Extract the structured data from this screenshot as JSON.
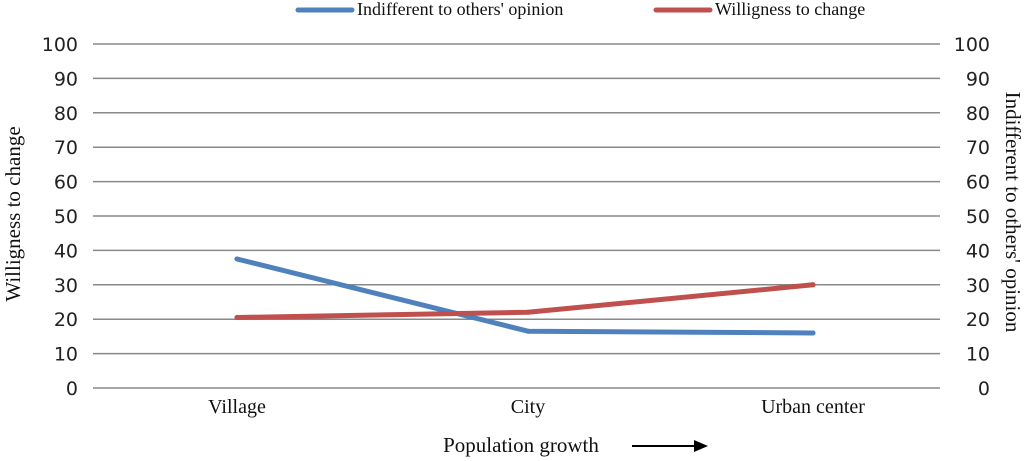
{
  "chart_data": {
    "type": "line",
    "categories": [
      "Village",
      "City",
      "Urban center"
    ],
    "series": [
      {
        "name": "Indifferent to  others' opinion",
        "values": [
          37.5,
          16.5,
          16
        ],
        "color": "#4f81bd",
        "axis": "right"
      },
      {
        "name": "Willigness to change",
        "values": [
          20.5,
          22,
          30
        ],
        "color": "#c0504d",
        "axis": "left"
      }
    ],
    "y_ticks": [
      "0",
      "10",
      "20",
      "30",
      "40",
      "50",
      "60",
      "70",
      "80",
      "90",
      "100"
    ],
    "ylim": [
      0,
      100
    ],
    "ylabel_left": "Willigness to change",
    "ylabel_right": "Indifferent to others' opinion",
    "xlabel": "Population growth",
    "grid": true,
    "legend_position": "top"
  }
}
